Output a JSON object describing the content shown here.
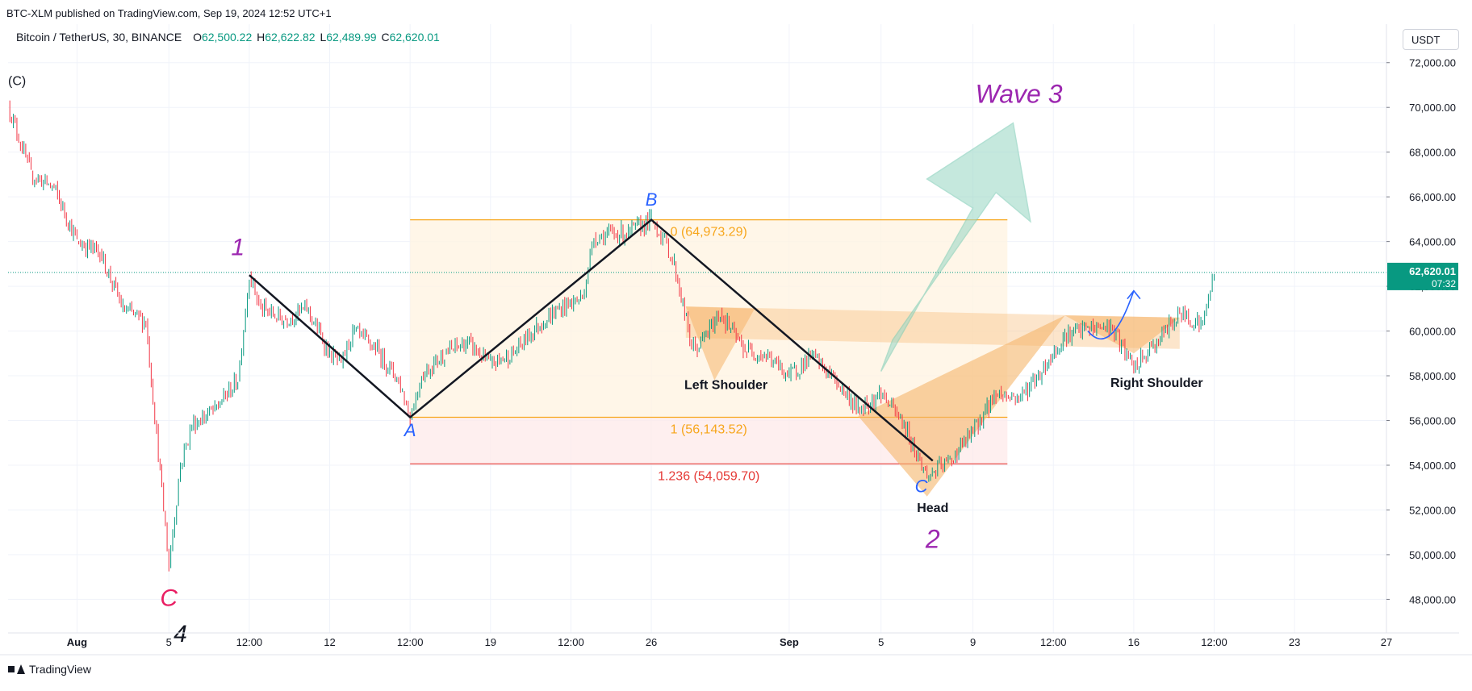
{
  "header": {
    "published": "BTC-XLM published on TradingView.com, Sep 19, 2024 12:52 UTC+1",
    "symbol": "Bitcoin / TetherUS, 30, BINANCE",
    "ohlc": {
      "o_label": "O",
      "o": "62,500.22",
      "h_label": "H",
      "h": "62,622.82",
      "l_label": "L",
      "l": "62,489.99",
      "c_label": "C",
      "c": "62,620.01"
    },
    "currency": "USDT",
    "brand": "TradingView"
  },
  "colors": {
    "up": "#089981",
    "down": "#f23645",
    "fib_orange": "#f7a61c",
    "fib_red": "#e53935",
    "wave_purple": "#9c27b0",
    "abc_blue": "#2962ff",
    "wave_c_red": "#e91e63",
    "pattern_fill": "#f5b56a",
    "arrow_fill": "#9fd9c8",
    "last_price_bg": "#089981"
  },
  "chart_data": {
    "type": "candlestick",
    "symbol": "BTCUSDT",
    "timeframe": "30",
    "yaxis": {
      "range": [
        46500,
        73000
      ],
      "ticks": [
        48000,
        50000,
        52000,
        54000,
        56000,
        58000,
        60000,
        62000,
        64000,
        66000,
        68000,
        70000,
        72000
      ],
      "tick_labels": [
        "48,000.00",
        "50,000.00",
        "52,000.00",
        "54,000.00",
        "56,000.00",
        "58,000.00",
        "60,000.00",
        "62,000.00",
        "64,000.00",
        "66,000.00",
        "68,000.00",
        "70,000.00",
        "72,000.00"
      ]
    },
    "xaxis": {
      "range": [
        "2024-07-29",
        "2024-09-27"
      ],
      "ticks": [
        {
          "t": "2024-08-01",
          "label": "Aug",
          "bold": true
        },
        {
          "t": "2024-08-05",
          "label": "5"
        },
        {
          "t": "2024-08-08T12:00",
          "label": "12:00"
        },
        {
          "t": "2024-08-12",
          "label": "12"
        },
        {
          "t": "2024-08-15T12:00",
          "label": "12:00"
        },
        {
          "t": "2024-08-19",
          "label": "19"
        },
        {
          "t": "2024-08-22T12:00",
          "label": "12:00"
        },
        {
          "t": "2024-08-26",
          "label": "26"
        },
        {
          "t": "2024-09-01",
          "label": "Sep",
          "bold": true
        },
        {
          "t": "2024-09-05",
          "label": "5"
        },
        {
          "t": "2024-09-09",
          "label": "9"
        },
        {
          "t": "2024-09-12T12:00",
          "label": "12:00"
        },
        {
          "t": "2024-09-16",
          "label": "16"
        },
        {
          "t": "2024-09-19T12:00",
          "label": "12:00"
        },
        {
          "t": "2024-09-23",
          "label": "23"
        },
        {
          "t": "2024-09-27",
          "label": "27"
        }
      ]
    },
    "price_path": [
      [
        "2024-07-29",
        70100
      ],
      [
        "2024-07-30",
        67000
      ],
      [
        "2024-07-31",
        66400
      ],
      [
        "2024-08-01",
        64000
      ],
      [
        "2024-08-02",
        63500
      ],
      [
        "2024-08-03",
        61000
      ],
      [
        "2024-08-04",
        60400
      ],
      [
        "2024-08-05",
        49500
      ],
      [
        "2024-08-05T12:00",
        54000
      ],
      [
        "2024-08-06",
        55800
      ],
      [
        "2024-08-07",
        56500
      ],
      [
        "2024-08-08",
        57800
      ],
      [
        "2024-08-08T12:00",
        62500
      ],
      [
        "2024-08-09",
        61000
      ],
      [
        "2024-08-10",
        60500
      ],
      [
        "2024-08-11",
        61000
      ],
      [
        "2024-08-12",
        59000
      ],
      [
        "2024-08-12T12:00",
        58500
      ],
      [
        "2024-08-13",
        60000
      ],
      [
        "2024-08-14",
        59200
      ],
      [
        "2024-08-15",
        57800
      ],
      [
        "2024-08-15T12:00",
        56143
      ],
      [
        "2024-08-16",
        58000
      ],
      [
        "2024-08-17",
        59000
      ],
      [
        "2024-08-18",
        59500
      ],
      [
        "2024-08-19",
        58500
      ],
      [
        "2024-08-20",
        59000
      ],
      [
        "2024-08-21",
        60200
      ],
      [
        "2024-08-22",
        61000
      ],
      [
        "2024-08-23",
        61500
      ],
      [
        "2024-08-23T12:00",
        64200
      ],
      [
        "2024-08-24",
        64300
      ],
      [
        "2024-08-25",
        64400
      ],
      [
        "2024-08-26",
        64973
      ],
      [
        "2024-08-26T12:00",
        64200
      ],
      [
        "2024-08-27",
        63000
      ],
      [
        "2024-08-27T18:00",
        59300
      ],
      [
        "2024-08-28",
        59200
      ],
      [
        "2024-08-29",
        60800
      ],
      [
        "2024-08-30",
        59200
      ],
      [
        "2024-08-31",
        58900
      ],
      [
        "2024-09-01",
        58000
      ],
      [
        "2024-09-02",
        58900
      ],
      [
        "2024-09-03",
        57800
      ],
      [
        "2024-09-04",
        56500
      ],
      [
        "2024-09-05",
        57200
      ],
      [
        "2024-09-06",
        55800
      ],
      [
        "2024-09-07",
        53500
      ],
      [
        "2024-09-08",
        54200
      ],
      [
        "2024-09-09",
        55500
      ],
      [
        "2024-09-10",
        57200
      ],
      [
        "2024-09-11",
        57000
      ],
      [
        "2024-09-12",
        58200
      ],
      [
        "2024-09-13",
        59800
      ],
      [
        "2024-09-14",
        60100
      ],
      [
        "2024-09-15",
        60200
      ],
      [
        "2024-09-16",
        58300
      ],
      [
        "2024-09-17",
        59500
      ],
      [
        "2024-09-18",
        60800
      ],
      [
        "2024-09-19",
        60300
      ],
      [
        "2024-09-19T12:00",
        62620
      ]
    ],
    "last_price": {
      "value": 62620.01,
      "label": "62,620.01",
      "countdown": "07:32"
    },
    "fib_retracement": {
      "t_start": "2024-08-15T12:00",
      "t_end": "2024-09-10T12:00",
      "levels": [
        {
          "ratio": "0",
          "price": 64973.29,
          "label": "0 (64,973.29)",
          "color": "#f7a61c"
        },
        {
          "ratio": "1",
          "price": 56143.52,
          "label": "1 (56,143.52)",
          "color": "#f7a61c"
        },
        {
          "ratio": "1.236",
          "price": 54059.7,
          "label": "1.236 (54,059.70)",
          "color": "#e53935"
        }
      ]
    },
    "abc_lines": [
      [
        "2024-08-08T12:00",
        62500
      ],
      [
        "2024-08-15T12:00",
        56143
      ],
      [
        "2024-08-26",
        64973
      ],
      [
        "2024-09-07T06:00",
        54200
      ]
    ],
    "head_shoulders": {
      "left_shoulder": [
        [
          "2024-08-27T12:00",
          61100
        ],
        [
          "2024-08-28T18:00",
          57800
        ],
        [
          "2024-08-30T12:00",
          61000
        ]
      ],
      "head": [
        [
          "2024-09-04",
          56200
        ],
        [
          "2024-09-07",
          52600
        ],
        [
          "2024-09-10",
          56700
        ],
        [
          "2024-09-13",
          60700
        ]
      ],
      "right_shoulder": [
        [
          "2024-09-13",
          60700
        ],
        [
          "2024-09-16",
          59000
        ],
        [
          "2024-09-18",
          60600
        ]
      ],
      "neckline": [
        [
          "2024-08-27T12:00",
          61100
        ],
        [
          "2024-09-18",
          60600
        ]
      ]
    },
    "annotations": [
      {
        "text": "(C)",
        "t": "2024-07-29",
        "price": 71000,
        "color": "#131722",
        "size": 16,
        "style": "normal"
      },
      {
        "text": "1",
        "t": "2024-08-08",
        "price": 63400,
        "color": "#9c27b0",
        "size": 30,
        "style": "italic"
      },
      {
        "text": "B",
        "t": "2024-08-26",
        "price": 65600,
        "color": "#2962ff",
        "size": 22,
        "style": "italic"
      },
      {
        "text": "A",
        "t": "2024-08-15T12:00",
        "price": 55300,
        "color": "#2962ff",
        "size": 22,
        "style": "italic"
      },
      {
        "text": "C",
        "t": "2024-09-06T18:00",
        "price": 52800,
        "color": "#2962ff",
        "size": 22,
        "style": "italic"
      },
      {
        "text": "Wave 3",
        "t": "2024-09-11",
        "price": 70200,
        "color": "#9c27b0",
        "size": 32,
        "style": "italic"
      },
      {
        "text": "Left Shoulder",
        "t": "2024-08-29T06:00",
        "price": 57400,
        "color": "#131722",
        "size": 16,
        "style": "bold"
      },
      {
        "text": "Right Shoulder",
        "t": "2024-09-17",
        "price": 57500,
        "color": "#131722",
        "size": 16,
        "style": "bold"
      },
      {
        "text": "Head",
        "t": "2024-09-07T06:00",
        "price": 51900,
        "color": "#131722",
        "size": 16,
        "style": "bold"
      },
      {
        "text": "2",
        "t": "2024-09-07T06:00",
        "price": 50300,
        "color": "#9c27b0",
        "size": 32,
        "style": "italic"
      },
      {
        "text": "C",
        "t": "2024-08-05",
        "price": 47700,
        "color": "#e91e63",
        "size": 30,
        "style": "italic"
      },
      {
        "text": "4",
        "t": "2024-08-05T12:00",
        "price": 46100,
        "color": "#131722",
        "size": 30,
        "style": "italic"
      }
    ],
    "wave3_arrow": [
      [
        "2024-09-05",
        58200
      ],
      [
        "2024-09-09",
        65500
      ],
      [
        "2024-09-07",
        66800
      ],
      [
        "2024-09-10T18:00",
        69300
      ],
      [
        "2024-09-11T12:00",
        64900
      ],
      [
        "2024-09-10",
        66200
      ],
      [
        "2024-09-05T12:00",
        59600
      ]
    ],
    "curved_arrow": [
      [
        "2024-09-14",
        60000
      ],
      [
        "2024-09-15",
        59500
      ],
      [
        "2024-09-16",
        61800
      ]
    ]
  }
}
